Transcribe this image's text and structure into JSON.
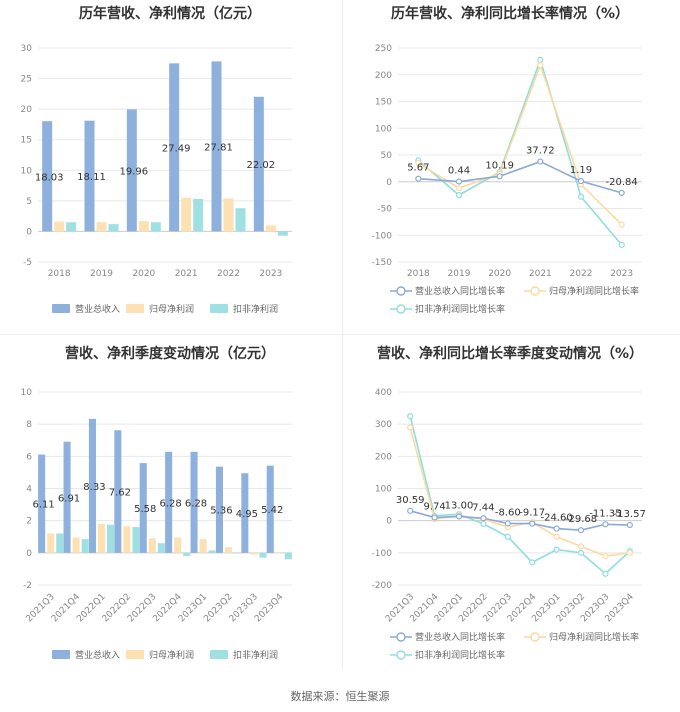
{
  "colors": {
    "revenue": "#8eb0dc",
    "parent_profit": "#fde1b2",
    "deducted_profit": "#9fe0e2",
    "rev_growth_line": "#8ba9d6",
    "parent_growth_line": "#fcd9a0",
    "deducted_growth_line": "#90dde0"
  },
  "source": "数据来源：恒生聚源",
  "chart_data": [
    {
      "id": "annual-bar",
      "type": "bar",
      "title": "历年营收、净利情况（亿元）",
      "categories": [
        "2018",
        "2019",
        "2020",
        "2021",
        "2022",
        "2023"
      ],
      "ylim": [
        -5,
        30
      ],
      "yticks": [
        30,
        25,
        20,
        15,
        10,
        5,
        0,
        -5
      ],
      "series": [
        {
          "name": "营业总收入",
          "values": [
            18.03,
            18.11,
            19.96,
            27.49,
            27.81,
            22.02
          ],
          "labels": [
            "18.03",
            "18.11",
            "19.96",
            "27.49",
            "27.81",
            "22.02"
          ]
        },
        {
          "name": "归母净利润",
          "values": [
            1.6,
            1.5,
            1.7,
            5.5,
            5.4,
            1.0
          ]
        },
        {
          "name": "扣非净利润",
          "values": [
            1.5,
            1.2,
            1.5,
            5.3,
            3.8,
            -0.7
          ]
        }
      ],
      "legend_position": "bottom"
    },
    {
      "id": "annual-line",
      "type": "line",
      "title": "历年营收、净利同比增长率情况（%）",
      "categories": [
        "2018",
        "2019",
        "2020",
        "2021",
        "2022",
        "2023"
      ],
      "ylim": [
        -150,
        250
      ],
      "yticks": [
        250,
        200,
        150,
        100,
        50,
        0,
        -50,
        -100,
        -150
      ],
      "series": [
        {
          "name": "营业总收入同比增长率",
          "values": [
            5.67,
            0.44,
            10.19,
            37.72,
            1.19,
            -20.84
          ],
          "labels": [
            "5.67",
            "0.44",
            "10.19",
            "37.72",
            "1.19",
            "-20.84"
          ]
        },
        {
          "name": "归母净利润同比增长率",
          "values": [
            35,
            -12,
            15,
            218,
            -5,
            -80
          ]
        },
        {
          "name": "扣非净利润同比增长率",
          "values": [
            40,
            -25,
            18,
            228,
            -28,
            -118
          ]
        }
      ],
      "legend_position": "bottom"
    },
    {
      "id": "quarter-bar",
      "type": "bar",
      "title": "营收、净利季度变动情况（亿元）",
      "categories": [
        "2021Q3",
        "2021Q4",
        "2022Q1",
        "2022Q2",
        "2022Q3",
        "2022Q4",
        "2023Q1",
        "2023Q2",
        "2023Q3",
        "2023Q4"
      ],
      "ylim": [
        -2,
        10
      ],
      "yticks": [
        10,
        8,
        6,
        4,
        2,
        0,
        -2
      ],
      "series": [
        {
          "name": "营业总收入",
          "values": [
            6.11,
            6.91,
            8.33,
            7.62,
            5.58,
            6.28,
            6.28,
            5.36,
            4.95,
            5.42
          ],
          "labels": [
            "6.11",
            "6.91",
            "8.33",
            "7.62",
            "5.58",
            "6.28",
            "6.28",
            "5.36",
            "4.95",
            "5.42"
          ]
        },
        {
          "name": "归母净利润",
          "values": [
            1.2,
            0.95,
            1.8,
            1.65,
            0.9,
            0.95,
            0.85,
            0.35,
            -0.1,
            -0.05
          ]
        },
        {
          "name": "扣非净利润",
          "values": [
            1.2,
            0.85,
            1.75,
            1.6,
            0.6,
            -0.2,
            0.15,
            0.0,
            -0.3,
            -0.4
          ]
        }
      ],
      "legend_position": "bottom"
    },
    {
      "id": "quarter-line",
      "type": "line",
      "title": "营收、净利同比增长率季度变动情况（%）",
      "categories": [
        "2021Q3",
        "2021Q4",
        "2022Q1",
        "2022Q2",
        "2022Q3",
        "2022Q4",
        "2023Q1",
        "2023Q2",
        "2023Q3",
        "2023Q4"
      ],
      "ylim": [
        -200,
        400
      ],
      "yticks": [
        400,
        300,
        200,
        100,
        0,
        -100,
        -200
      ],
      "series": [
        {
          "name": "营业总收入同比增长率",
          "values": [
            30.59,
            9.74,
            13.0,
            7.44,
            -8.6,
            -9.17,
            -24.6,
            -29.68,
            -11.35,
            -13.57
          ],
          "labels": [
            "30.59",
            "9.74",
            "13.00",
            "7.44",
            "-8.60",
            "-9.17",
            "-24.60",
            "-29.68",
            "-11.35",
            "-13.57"
          ]
        },
        {
          "name": "归母净利润同比增长率",
          "values": [
            290,
            5,
            15,
            5,
            -20,
            -5,
            -50,
            -80,
            -110,
            -100
          ]
        },
        {
          "name": "扣非净利润同比增长率",
          "values": [
            325,
            15,
            20,
            -10,
            -50,
            -130,
            -90,
            -100,
            -165,
            -95
          ]
        }
      ],
      "legend_position": "bottom"
    }
  ]
}
